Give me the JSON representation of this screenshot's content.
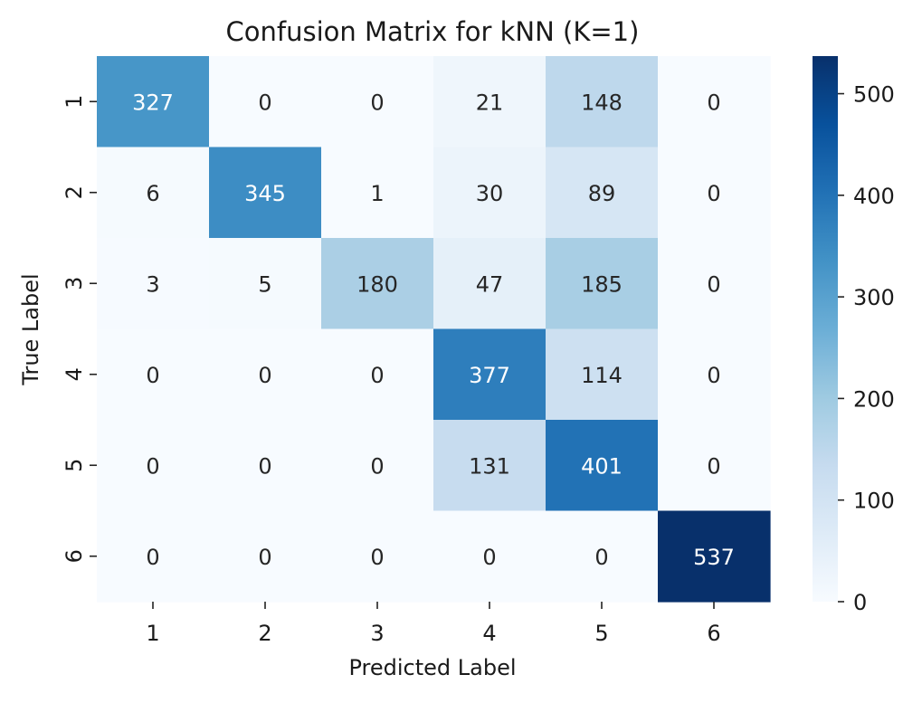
{
  "chart_data": {
    "type": "heatmap",
    "title": "Confusion Matrix for kNN (K=1)",
    "xlabel": "Predicted Label",
    "ylabel": "True Label",
    "x_categories": [
      "1",
      "2",
      "3",
      "4",
      "5",
      "6"
    ],
    "y_categories": [
      "1",
      "2",
      "3",
      "4",
      "5",
      "6"
    ],
    "values": [
      [
        327,
        0,
        0,
        21,
        148,
        0
      ],
      [
        6,
        345,
        1,
        30,
        89,
        0
      ],
      [
        3,
        5,
        180,
        47,
        185,
        0
      ],
      [
        0,
        0,
        0,
        377,
        114,
        0
      ],
      [
        0,
        0,
        0,
        131,
        401,
        0
      ],
      [
        0,
        0,
        0,
        0,
        0,
        537
      ]
    ],
    "colormap": "Blues",
    "colorbar": {
      "vmin": 0,
      "vmax": 537,
      "ticks": [
        0,
        100,
        200,
        300,
        400,
        500
      ]
    }
  }
}
